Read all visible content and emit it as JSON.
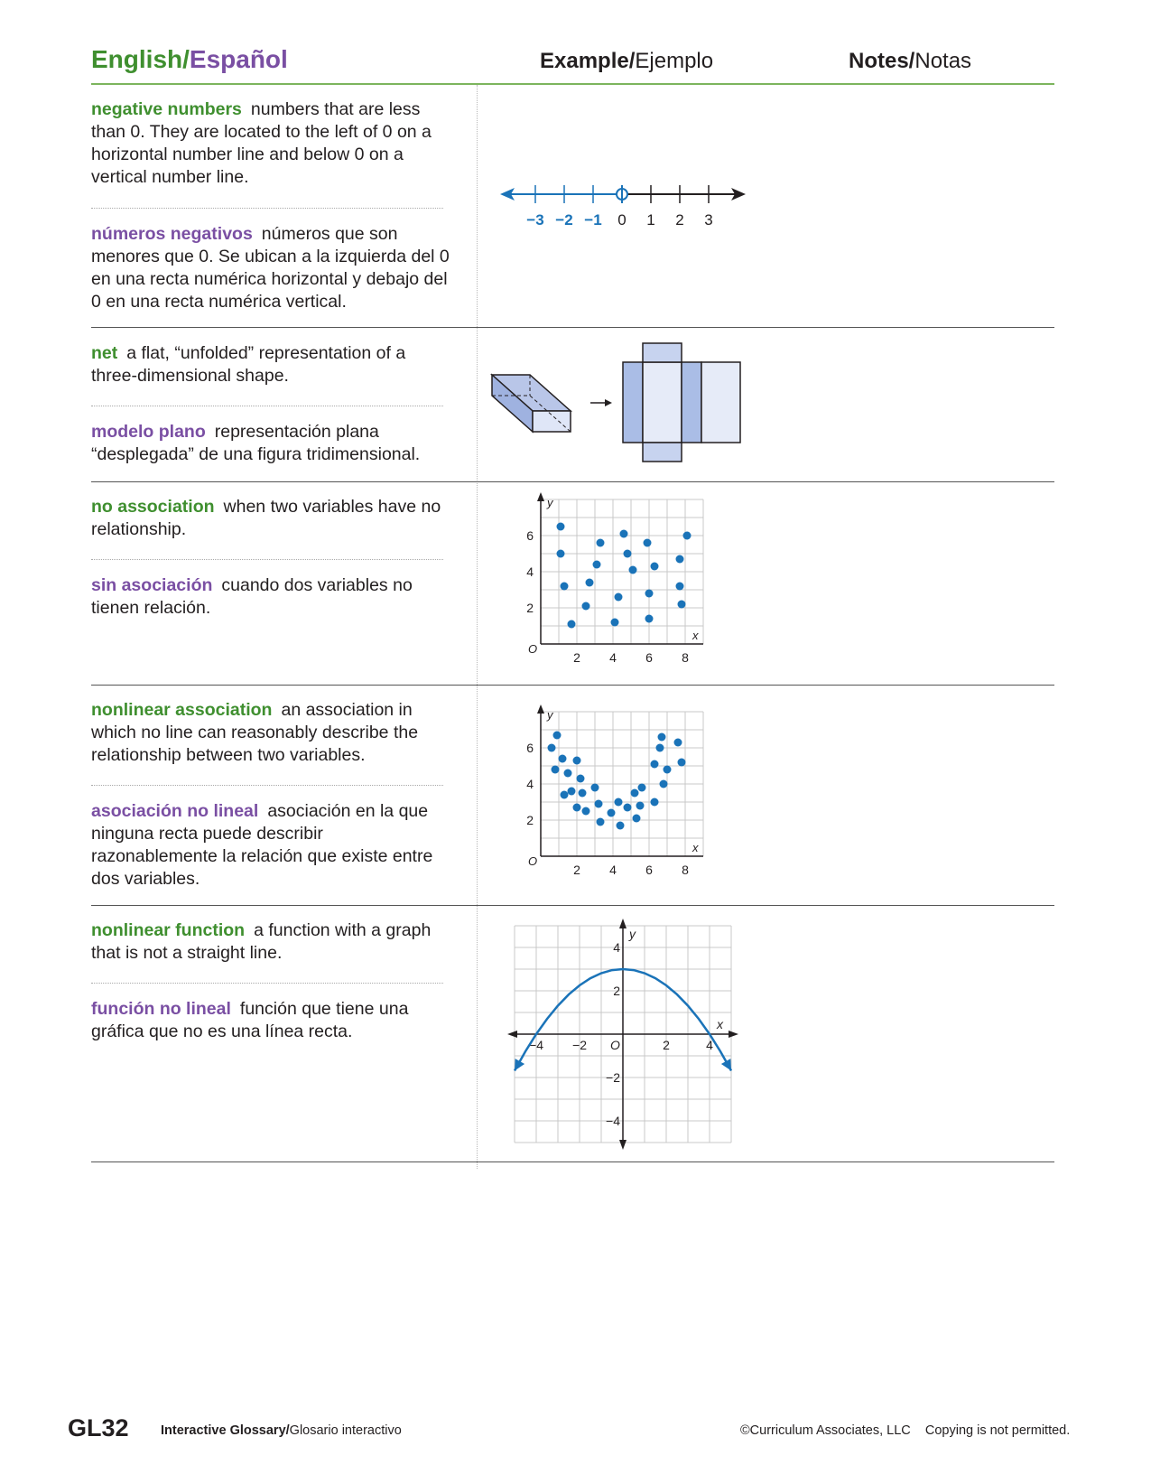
{
  "header": {
    "col1_en": "English",
    "col1_sep": "/",
    "col1_es": "Español",
    "col2_bold": "Example/",
    "col2_rest": "Ejemplo",
    "col3_bold": "Notes/",
    "col3_rest": "Notas"
  },
  "entries": [
    {
      "en_term": "negative numbers",
      "en_def": "numbers that are less than 0. They are located to the left of 0 on a horizontal number line and below 0 on a vertical number line.",
      "es_term": "números negativos",
      "es_def": "números que son menores que 0. Se ubican a la izquierda del 0 en una recta numérica horizontal y debajo del 0 en una recta numérica vertical."
    },
    {
      "en_term": "net",
      "en_def": "a flat, “unfolded” representation of a three-dimensional shape.",
      "es_term": "modelo plano",
      "es_def": "representación plana “desplegada” de una figura tridimensional."
    },
    {
      "en_term": "no association",
      "en_def": "when two variables have no relationship.",
      "es_term": "sin asociación",
      "es_def": "cuando dos variables no tienen relación."
    },
    {
      "en_term": "nonlinear association",
      "en_def": "an association in which no line can reasonably describe the relationship between two variables.",
      "es_term": "asociación no lineal",
      "es_def": "asociación en la que ninguna recta puede describir razonablemente la relación que existe entre dos variables."
    },
    {
      "en_term": "nonlinear function",
      "en_def": "a function with a graph that is not a straight line.",
      "es_term": "función no lineal",
      "es_def": "función que tiene una gráfica que no es una línea recta."
    }
  ],
  "number_line": {
    "negative_labels": [
      "−3",
      "−2",
      "−1"
    ],
    "other_labels": [
      "0",
      "1",
      "2",
      "3"
    ],
    "highlight_color": "#1a73b8"
  },
  "chart_data": [
    {
      "type": "scatter",
      "title": "",
      "xlabel": "x",
      "ylabel": "y",
      "origin_label": "O",
      "xlim": [
        0,
        9
      ],
      "ylim": [
        0,
        8
      ],
      "xticks": [
        2,
        4,
        6,
        8
      ],
      "yticks": [
        2,
        4,
        6
      ],
      "grid": true,
      "points": [
        [
          1.1,
          6.5
        ],
        [
          1.1,
          5.0
        ],
        [
          1.3,
          3.2
        ],
        [
          1.7,
          1.1
        ],
        [
          2.5,
          2.1
        ],
        [
          2.7,
          3.4
        ],
        [
          3.1,
          4.4
        ],
        [
          3.3,
          5.6
        ],
        [
          4.1,
          1.2
        ],
        [
          4.3,
          2.6
        ],
        [
          4.6,
          6.1
        ],
        [
          4.8,
          5.0
        ],
        [
          5.1,
          4.1
        ],
        [
          5.9,
          5.6
        ],
        [
          6.0,
          2.8
        ],
        [
          6.0,
          1.4
        ],
        [
          6.3,
          4.3
        ],
        [
          7.7,
          4.7
        ],
        [
          7.7,
          3.2
        ],
        [
          7.8,
          2.2
        ],
        [
          8.1,
          6.0
        ]
      ],
      "point_color": "#1a73b8"
    },
    {
      "type": "scatter",
      "title": "",
      "xlabel": "x",
      "ylabel": "y",
      "origin_label": "O",
      "xlim": [
        0,
        9
      ],
      "ylim": [
        0,
        8
      ],
      "xticks": [
        2,
        4,
        6,
        8
      ],
      "yticks": [
        2,
        4,
        6
      ],
      "grid": true,
      "points": [
        [
          0.6,
          6.0
        ],
        [
          0.9,
          6.7
        ],
        [
          0.8,
          4.8
        ],
        [
          1.2,
          5.4
        ],
        [
          1.5,
          4.6
        ],
        [
          1.3,
          3.4
        ],
        [
          1.7,
          3.6
        ],
        [
          2.0,
          5.3
        ],
        [
          2.2,
          4.3
        ],
        [
          2.3,
          3.5
        ],
        [
          2.0,
          2.7
        ],
        [
          2.5,
          2.5
        ],
        [
          3.0,
          3.8
        ],
        [
          3.2,
          2.9
        ],
        [
          3.3,
          1.9
        ],
        [
          3.9,
          2.4
        ],
        [
          4.3,
          3.0
        ],
        [
          4.4,
          1.7
        ],
        [
          4.8,
          2.7
        ],
        [
          5.2,
          3.5
        ],
        [
          5.3,
          2.1
        ],
        [
          5.5,
          2.8
        ],
        [
          5.6,
          3.8
        ],
        [
          6.3,
          3.0
        ],
        [
          6.3,
          5.1
        ],
        [
          6.6,
          6.0
        ],
        [
          6.7,
          6.6
        ],
        [
          6.8,
          4.0
        ],
        [
          7.0,
          4.8
        ],
        [
          7.6,
          6.3
        ],
        [
          7.8,
          5.2
        ]
      ],
      "point_color": "#1a73b8"
    },
    {
      "type": "line",
      "title": "",
      "xlabel": "x",
      "ylabel": "y",
      "origin_label": "O",
      "xlim": [
        -5,
        5
      ],
      "ylim": [
        -5,
        5
      ],
      "xticks": [
        -4,
        -2,
        2,
        4
      ],
      "yticks": [
        -4,
        -2,
        2,
        4
      ],
      "tick_labels_x": [
        "−4",
        "−2",
        "2",
        "4"
      ],
      "tick_labels_y": [
        "−4",
        "−2",
        "2",
        "4"
      ],
      "grid": true,
      "function": "y = 3 - 0.1875 x^2",
      "x": [
        -5.0,
        -4.5,
        -4.0,
        -3.5,
        -3.0,
        -2.5,
        -2.0,
        -1.5,
        -1.0,
        -0.5,
        0.0,
        0.5,
        1.0,
        1.5,
        2.0,
        2.5,
        3.0,
        3.5,
        4.0,
        4.5,
        5.0
      ],
      "y": [
        -1.6875,
        -0.7969,
        0.0,
        0.7031,
        1.3125,
        1.8281,
        2.25,
        2.5781,
        2.8125,
        2.9531,
        3.0,
        2.9531,
        2.8125,
        2.5781,
        2.25,
        1.8281,
        1.3125,
        0.7031,
        0.0,
        -0.7969,
        -1.6875
      ],
      "line_color": "#1a73b8"
    }
  ],
  "footer": {
    "page": "GL32",
    "title_bold": "Interactive Glossary/",
    "title_rest": "Glosario interactivo",
    "copyright": "©Curriculum Associates, LLC    Copying is not permitted."
  }
}
